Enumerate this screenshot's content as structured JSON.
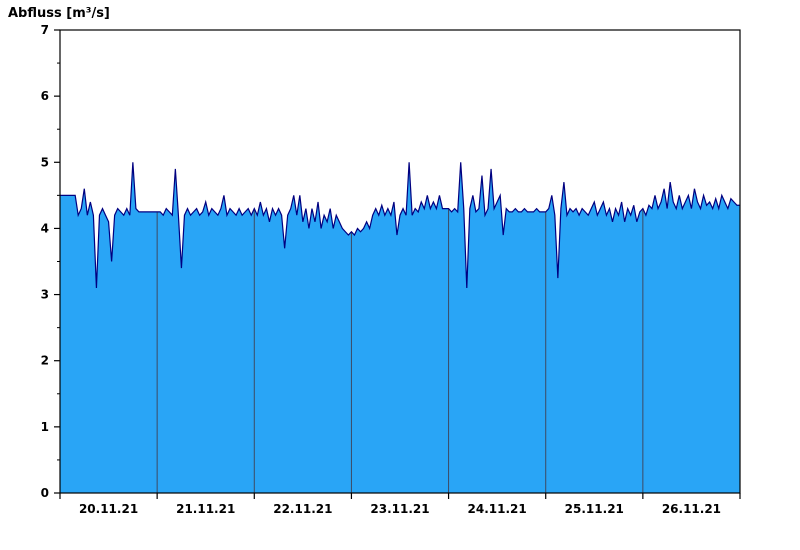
{
  "chart_data": {
    "type": "area",
    "title": "Abfluss [m³/s]",
    "ylabel": "Abfluss [m³/s]",
    "xlabel": "",
    "ylim": [
      0,
      7
    ],
    "y_ticks": [
      0,
      1,
      2,
      3,
      4,
      5,
      6,
      7
    ],
    "grid": "day-separators-only",
    "legend_position": "none",
    "categories": [
      "20.11.21",
      "21.11.21",
      "22.11.21",
      "23.11.21",
      "24.11.21",
      "25.11.21",
      "26.11.21"
    ],
    "points_per_day": 32,
    "series_name": "Abfluss",
    "fill_color": "#29A5F6",
    "line_color": "#000080",
    "grid_color": "#3C4A63",
    "axis_color": "#000000",
    "values": [
      4.5,
      4.5,
      4.5,
      4.5,
      4.5,
      4.5,
      4.2,
      4.3,
      4.6,
      4.2,
      4.4,
      4.2,
      3.1,
      4.2,
      4.3,
      4.2,
      4.1,
      3.5,
      4.2,
      4.3,
      4.25,
      4.2,
      4.3,
      4.2,
      5.0,
      4.3,
      4.25,
      4.25,
      4.25,
      4.25,
      4.25,
      4.25,
      4.25,
      4.25,
      4.2,
      4.3,
      4.25,
      4.2,
      4.9,
      4.2,
      3.4,
      4.2,
      4.3,
      4.2,
      4.25,
      4.3,
      4.2,
      4.25,
      4.4,
      4.2,
      4.3,
      4.25,
      4.2,
      4.3,
      4.5,
      4.2,
      4.3,
      4.25,
      4.2,
      4.3,
      4.2,
      4.25,
      4.3,
      4.2,
      4.3,
      4.2,
      4.4,
      4.2,
      4.3,
      4.1,
      4.3,
      4.2,
      4.3,
      4.2,
      3.7,
      4.2,
      4.3,
      4.5,
      4.2,
      4.5,
      4.1,
      4.3,
      4.0,
      4.3,
      4.1,
      4.4,
      4.0,
      4.2,
      4.1,
      4.3,
      4.0,
      4.2,
      4.1,
      4.0,
      3.95,
      3.9,
      3.95,
      3.9,
      4.0,
      3.95,
      4.0,
      4.1,
      4.0,
      4.2,
      4.3,
      4.2,
      4.35,
      4.2,
      4.3,
      4.2,
      4.4,
      3.9,
      4.2,
      4.3,
      4.2,
      5.0,
      4.2,
      4.3,
      4.25,
      4.4,
      4.3,
      4.5,
      4.3,
      4.4,
      4.3,
      4.5,
      4.3,
      4.3,
      4.3,
      4.25,
      4.3,
      4.25,
      5.0,
      4.3,
      3.1,
      4.3,
      4.5,
      4.25,
      4.3,
      4.8,
      4.2,
      4.3,
      4.9,
      4.3,
      4.4,
      4.5,
      3.9,
      4.3,
      4.25,
      4.25,
      4.3,
      4.25,
      4.25,
      4.3,
      4.25,
      4.25,
      4.25,
      4.3,
      4.25,
      4.25,
      4.25,
      4.3,
      4.5,
      4.2,
      3.25,
      4.3,
      4.7,
      4.2,
      4.3,
      4.25,
      4.3,
      4.2,
      4.3,
      4.25,
      4.2,
      4.3,
      4.4,
      4.2,
      4.3,
      4.4,
      4.2,
      4.3,
      4.1,
      4.3,
      4.2,
      4.4,
      4.1,
      4.3,
      4.2,
      4.35,
      4.1,
      4.25,
      4.3,
      4.2,
      4.35,
      4.3,
      4.5,
      4.3,
      4.4,
      4.6,
      4.3,
      4.7,
      4.4,
      4.3,
      4.5,
      4.3,
      4.4,
      4.5,
      4.3,
      4.6,
      4.4,
      4.3,
      4.5,
      4.35,
      4.4,
      4.3,
      4.45,
      4.3,
      4.5,
      4.4,
      4.3,
      4.45,
      4.4,
      4.35
    ]
  }
}
